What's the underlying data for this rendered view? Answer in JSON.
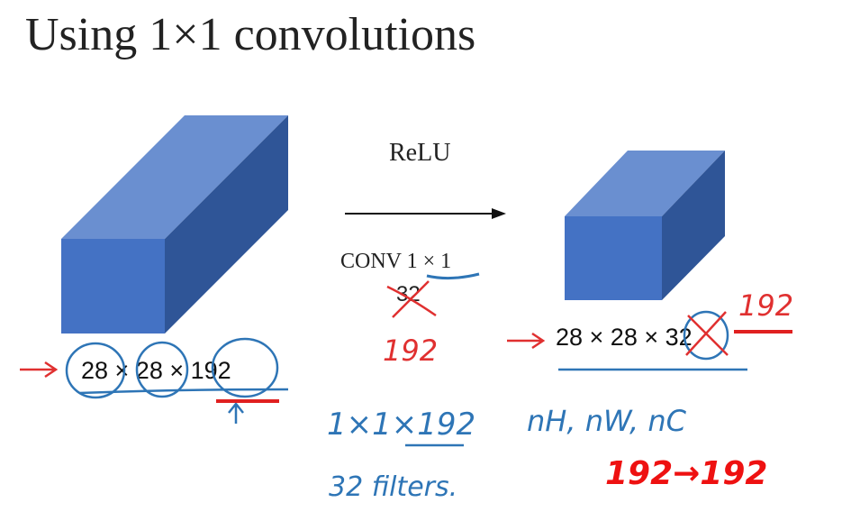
{
  "title": "Using 1×1 convolutions",
  "operation": {
    "activation": "ReLU",
    "conv": "CONV 1 × 1",
    "filters": "32"
  },
  "input_shape": "28 × 28 × 192",
  "output_shape": "28 × 28 × 32",
  "annotations": {
    "filters_corrected": "192",
    "output_channels_corrected": "192",
    "filter_size": "1×1×192",
    "filter_count": "32 filters.",
    "dims": "nH, nW, nC",
    "channels": "192→192"
  }
}
